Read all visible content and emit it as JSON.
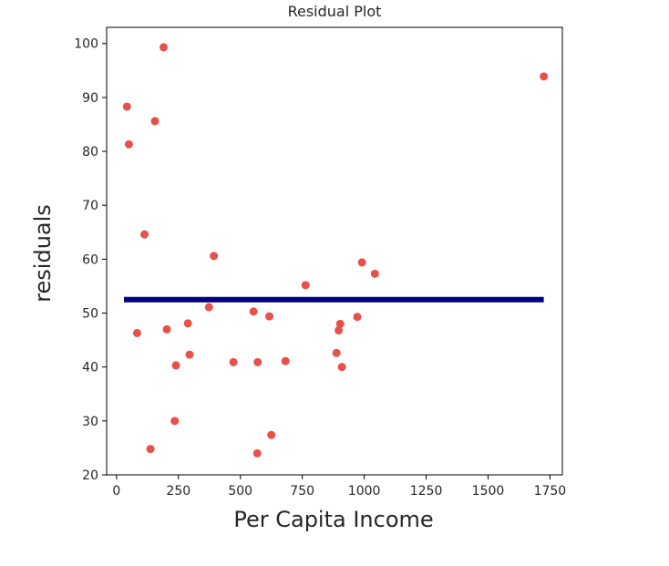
{
  "chart_data": {
    "type": "scatter",
    "title": "Residual Plot",
    "xlabel": "Per Capita Income",
    "ylabel": "residuals",
    "xlim": [
      -40,
      1800
    ],
    "ylim": [
      20,
      103
    ],
    "xticks": [
      0,
      250,
      500,
      750,
      1000,
      1250,
      1500,
      1750
    ],
    "xtick_labels": [
      "0",
      "250",
      "500",
      "750",
      "1000",
      "1250",
      "1500",
      "1750"
    ],
    "yticks": [
      20,
      30,
      40,
      50,
      60,
      70,
      80,
      90,
      100
    ],
    "ytick_labels": [
      "20",
      "30",
      "40",
      "50",
      "60",
      "70",
      "80",
      "90",
      "100"
    ],
    "grid": false,
    "legend": false,
    "points_color": "#e8504a",
    "line_color": "#000080",
    "points": [
      {
        "x": 42,
        "y": 88.3
      },
      {
        "x": 50,
        "y": 81.3
      },
      {
        "x": 83,
        "y": 46.3
      },
      {
        "x": 113,
        "y": 64.6
      },
      {
        "x": 137,
        "y": 24.8
      },
      {
        "x": 155,
        "y": 85.6
      },
      {
        "x": 190,
        "y": 99.3
      },
      {
        "x": 203,
        "y": 47.0
      },
      {
        "x": 235,
        "y": 30.0
      },
      {
        "x": 240,
        "y": 40.3
      },
      {
        "x": 288,
        "y": 48.1
      },
      {
        "x": 295,
        "y": 42.3
      },
      {
        "x": 373,
        "y": 51.1
      },
      {
        "x": 393,
        "y": 60.6
      },
      {
        "x": 472,
        "y": 40.9
      },
      {
        "x": 553,
        "y": 50.3
      },
      {
        "x": 568,
        "y": 24.0
      },
      {
        "x": 570,
        "y": 40.9
      },
      {
        "x": 617,
        "y": 49.4
      },
      {
        "x": 625,
        "y": 27.4
      },
      {
        "x": 682,
        "y": 41.1
      },
      {
        "x": 763,
        "y": 55.2
      },
      {
        "x": 888,
        "y": 42.6
      },
      {
        "x": 897,
        "y": 46.8
      },
      {
        "x": 903,
        "y": 48.0
      },
      {
        "x": 910,
        "y": 40.0
      },
      {
        "x": 972,
        "y": 49.3
      },
      {
        "x": 991,
        "y": 59.4
      },
      {
        "x": 1043,
        "y": 57.3
      },
      {
        "x": 1725,
        "y": 93.9
      }
    ],
    "line": {
      "x": [
        30,
        1725
      ],
      "y": [
        52.5,
        52.5
      ]
    }
  }
}
